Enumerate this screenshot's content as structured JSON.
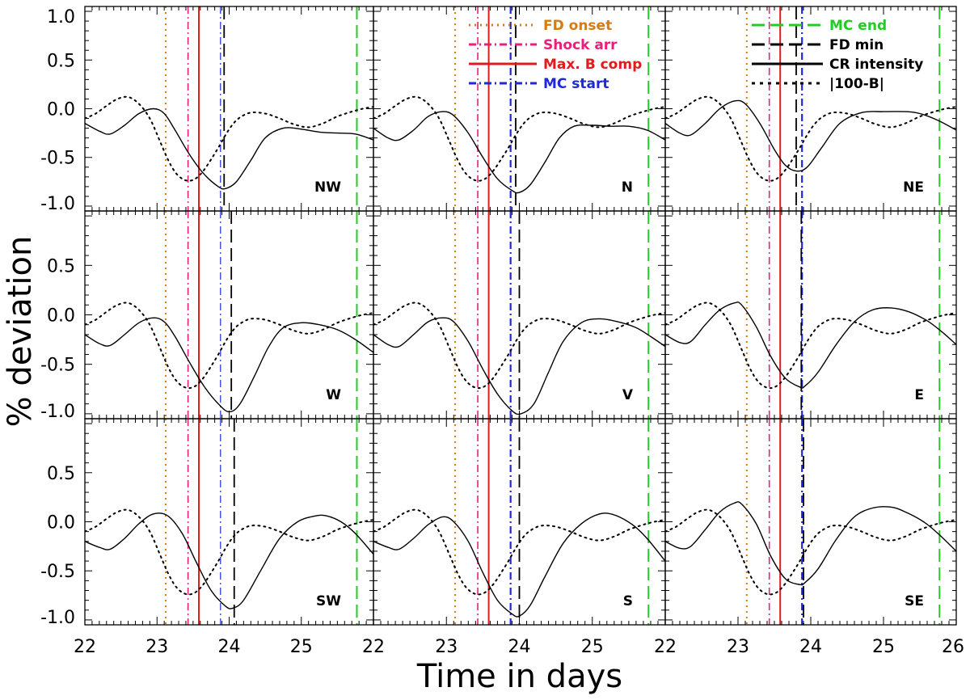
{
  "chart_data": {
    "type": "line",
    "layout": "3x3 panel grid",
    "ylabel": "% deviation",
    "xlabel": "Time in days",
    "xlim": [
      22,
      26
    ],
    "ylim": [
      -1.05,
      1.05
    ],
    "x_ticks": [
      "22",
      "23",
      "24",
      "25"
    ],
    "x_ticks_last": "26",
    "y_ticks": [
      "1.0",
      "0.5",
      "0.0",
      "-0.5",
      "-1.0"
    ],
    "colors": {
      "fd_onset": "#d97a0e",
      "shock": "#e8207a",
      "maxb": "#e01b1b",
      "mc_start": "#1e2ad8",
      "mc_end": "#22cc22",
      "black": "#000000"
    },
    "legend_left": [
      {
        "key": "fd_onset",
        "label": "FD onset",
        "style": "dotted"
      },
      {
        "key": "shock",
        "label": "Shock arr",
        "style": "dashdot"
      },
      {
        "key": "maxb",
        "label": "Max. B comp",
        "style": "solid"
      },
      {
        "key": "mc_start",
        "label": "MC start",
        "style": "dashdot"
      }
    ],
    "legend_right": [
      {
        "key": "mc_end",
        "label": "MC end",
        "style": "longdash"
      },
      {
        "key": "black",
        "label": "FD min",
        "style": "longdash"
      },
      {
        "key": "black",
        "label": "CR intensity",
        "style": "solid"
      },
      {
        "key": "black",
        "label": "|100-B|",
        "style": "dashed"
      }
    ],
    "events": {
      "fd_onset": 23.12,
      "shock": 23.43,
      "maxb": 23.58,
      "mc_start": 23.88,
      "mc_end": 25.77
    },
    "b_curve": {
      "name": "|100-B|",
      "x": [
        22.0,
        22.15,
        22.3,
        22.45,
        22.6,
        22.75,
        22.9,
        23.05,
        23.15,
        23.25,
        23.35,
        23.45,
        23.55,
        23.65,
        23.75,
        23.85,
        23.95,
        24.05,
        24.15,
        24.3,
        24.5,
        24.7,
        24.9,
        25.1,
        25.3,
        25.5,
        25.7,
        25.85,
        26.0
      ],
      "y": [
        -0.1,
        -0.05,
        0.03,
        0.1,
        0.12,
        0.05,
        -0.1,
        -0.35,
        -0.52,
        -0.65,
        -0.72,
        -0.74,
        -0.71,
        -0.63,
        -0.52,
        -0.4,
        -0.27,
        -0.16,
        -0.09,
        -0.04,
        -0.05,
        -0.1,
        -0.16,
        -0.19,
        -0.15,
        -0.08,
        -0.03,
        0.0,
        0.02
      ]
    },
    "panels": [
      {
        "label": "NW",
        "fd_min": 23.93,
        "cr_x": [
          22.0,
          22.2,
          22.35,
          22.55,
          22.75,
          22.95,
          23.1,
          23.25,
          23.45,
          23.65,
          23.85,
          23.95,
          24.1,
          24.3,
          24.5,
          24.75,
          25.0,
          25.25,
          25.5,
          25.75,
          26.0
        ],
        "cr_y": [
          -0.15,
          -0.23,
          -0.26,
          -0.17,
          -0.05,
          0.0,
          -0.05,
          -0.22,
          -0.47,
          -0.67,
          -0.8,
          -0.82,
          -0.75,
          -0.53,
          -0.3,
          -0.2,
          -0.21,
          -0.24,
          -0.25,
          -0.26,
          -0.32
        ]
      },
      {
        "label": "N",
        "fd_min": 23.95,
        "cr_x": [
          22.0,
          22.2,
          22.35,
          22.55,
          22.75,
          22.95,
          23.1,
          23.3,
          23.5,
          23.7,
          23.9,
          24.0,
          24.15,
          24.35,
          24.55,
          24.75,
          25.0,
          25.25,
          25.5,
          25.75,
          26.0
        ],
        "cr_y": [
          -0.2,
          -0.3,
          -0.32,
          -0.22,
          -0.08,
          -0.03,
          -0.07,
          -0.25,
          -0.5,
          -0.72,
          -0.84,
          -0.86,
          -0.78,
          -0.55,
          -0.3,
          -0.18,
          -0.17,
          -0.18,
          -0.18,
          -0.22,
          -0.32
        ]
      },
      {
        "label": "NE",
        "fd_min": 23.8,
        "cr_x": [
          22.0,
          22.2,
          22.35,
          22.55,
          22.75,
          22.95,
          23.1,
          23.3,
          23.5,
          23.65,
          23.8,
          23.95,
          24.15,
          24.4,
          24.7,
          25.0,
          25.3,
          25.5,
          25.75,
          26.0
        ],
        "cr_y": [
          -0.15,
          -0.25,
          -0.27,
          -0.15,
          0.0,
          0.08,
          0.05,
          -0.15,
          -0.42,
          -0.58,
          -0.64,
          -0.6,
          -0.4,
          -0.15,
          -0.04,
          -0.03,
          -0.03,
          -0.05,
          -0.12,
          -0.22
        ]
      },
      {
        "label": "W",
        "fd_min": 24.03,
        "cr_x": [
          22.0,
          22.2,
          22.35,
          22.55,
          22.75,
          22.95,
          23.1,
          23.25,
          23.45,
          23.65,
          23.85,
          24.0,
          24.15,
          24.35,
          24.55,
          24.75,
          25.0,
          25.25,
          25.5,
          25.75,
          26.0
        ],
        "cr_y": [
          -0.2,
          -0.29,
          -0.31,
          -0.2,
          -0.08,
          -0.03,
          -0.07,
          -0.22,
          -0.48,
          -0.72,
          -0.9,
          -0.98,
          -0.9,
          -0.62,
          -0.32,
          -0.13,
          -0.08,
          -0.1,
          -0.15,
          -0.25,
          -0.38
        ]
      },
      {
        "label": "V",
        "fd_min": 24.0,
        "cr_x": [
          22.0,
          22.2,
          22.35,
          22.55,
          22.75,
          22.95,
          23.1,
          23.3,
          23.5,
          23.7,
          23.9,
          24.02,
          24.2,
          24.4,
          24.6,
          24.85,
          25.1,
          25.35,
          25.6,
          25.8,
          26.0
        ],
        "cr_y": [
          -0.2,
          -0.3,
          -0.32,
          -0.2,
          -0.07,
          -0.03,
          -0.07,
          -0.27,
          -0.55,
          -0.8,
          -0.97,
          -1.0,
          -0.9,
          -0.58,
          -0.27,
          -0.08,
          -0.04,
          -0.07,
          -0.13,
          -0.22,
          -0.32
        ]
      },
      {
        "label": "E",
        "fd_min": 23.87,
        "cr_x": [
          22.0,
          22.2,
          22.35,
          22.55,
          22.75,
          22.95,
          23.05,
          23.25,
          23.45,
          23.65,
          23.85,
          23.92,
          24.1,
          24.35,
          24.6,
          24.85,
          25.1,
          25.35,
          25.6,
          25.8,
          26.0
        ],
        "cr_y": [
          -0.2,
          -0.28,
          -0.27,
          -0.1,
          0.05,
          0.12,
          0.1,
          -0.12,
          -0.42,
          -0.64,
          -0.73,
          -0.72,
          -0.58,
          -0.3,
          -0.07,
          0.05,
          0.07,
          0.03,
          -0.06,
          -0.17,
          -0.3
        ]
      },
      {
        "label": "SW",
        "fd_min": 24.07,
        "cr_x": [
          22.0,
          22.2,
          22.35,
          22.55,
          22.75,
          22.95,
          23.15,
          23.35,
          23.55,
          23.75,
          23.95,
          24.05,
          24.2,
          24.45,
          24.7,
          24.95,
          25.2,
          25.35,
          25.55,
          25.75,
          26.0
        ],
        "cr_y": [
          -0.2,
          -0.26,
          -0.28,
          -0.17,
          -0.02,
          0.08,
          0.06,
          -0.12,
          -0.42,
          -0.7,
          -0.86,
          -0.88,
          -0.8,
          -0.48,
          -0.17,
          0.0,
          0.06,
          0.06,
          0.0,
          -0.12,
          -0.33
        ]
      },
      {
        "label": "S",
        "fd_min": 24.0,
        "cr_x": [
          22.0,
          22.2,
          22.35,
          22.55,
          22.75,
          22.95,
          23.1,
          23.3,
          23.5,
          23.7,
          23.9,
          24.0,
          24.15,
          24.35,
          24.6,
          24.85,
          25.1,
          25.3,
          25.55,
          25.75,
          26.0
        ],
        "cr_y": [
          -0.2,
          -0.26,
          -0.28,
          -0.17,
          -0.03,
          0.05,
          0.0,
          -0.2,
          -0.52,
          -0.8,
          -0.94,
          -0.96,
          -0.85,
          -0.56,
          -0.22,
          -0.02,
          0.08,
          0.07,
          -0.03,
          -0.17,
          -0.4
        ]
      },
      {
        "label": "SE",
        "fd_min": 23.9,
        "cr_x": [
          22.0,
          22.2,
          22.35,
          22.55,
          22.75,
          22.95,
          23.05,
          23.25,
          23.45,
          23.65,
          23.85,
          23.92,
          24.1,
          24.35,
          24.6,
          24.85,
          25.1,
          25.3,
          25.55,
          25.75,
          26.0
        ],
        "cr_y": [
          -0.2,
          -0.27,
          -0.25,
          -0.08,
          0.1,
          0.19,
          0.18,
          -0.02,
          -0.35,
          -0.58,
          -0.64,
          -0.62,
          -0.48,
          -0.18,
          0.05,
          0.14,
          0.15,
          0.1,
          0.0,
          -0.12,
          -0.3
        ]
      }
    ]
  }
}
